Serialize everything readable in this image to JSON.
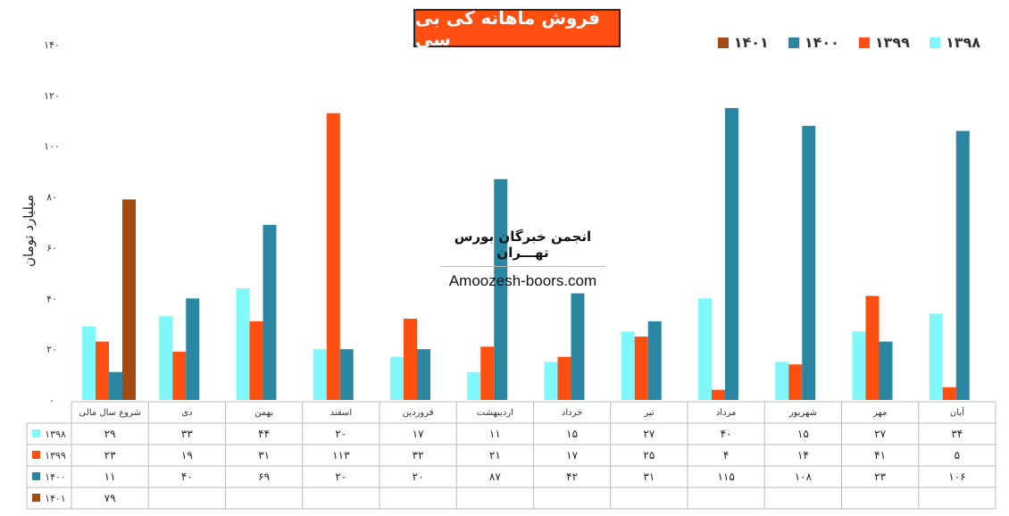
{
  "chart_data": {
    "type": "bar",
    "title": "فروش ماهانه کی بی سی",
    "ylabel": "میلیارد تومان",
    "ylim": [
      0,
      140
    ],
    "yticks": [
      "۰",
      "۲۰",
      "۴۰",
      "۶۰",
      "۸۰",
      "۱۰۰",
      "۱۲۰",
      "۱۴۰"
    ],
    "categories": [
      "شروع سال مالی",
      "دی",
      "بهمن",
      "اسفند",
      "فروردین",
      "اردیبهشت",
      "خرداد",
      "تیر",
      "مرداد",
      "شهریور",
      "مهر",
      "آبان"
    ],
    "series": [
      {
        "name": "۱۳۹۸",
        "color": "#7ff7fb",
        "values": [
          29,
          33,
          44,
          20,
          17,
          11,
          15,
          27,
          40,
          15,
          27,
          34
        ],
        "labels": [
          "۲۹",
          "۳۳",
          "۴۴",
          "۲۰",
          "۱۷",
          "۱۱",
          "۱۵",
          "۲۷",
          "۴۰",
          "۱۵",
          "۲۷",
          "۳۴"
        ]
      },
      {
        "name": "۱۳۹۹",
        "color": "#fe4f12",
        "values": [
          23,
          19,
          31,
          113,
          32,
          21,
          17,
          25,
          4,
          14,
          41,
          5
        ],
        "labels": [
          "۲۳",
          "۱۹",
          "۳۱",
          "۱۱۳",
          "۳۲",
          "۲۱",
          "۱۷",
          "۲۵",
          "۴",
          "۱۴",
          "۴۱",
          "۵"
        ]
      },
      {
        "name": "۱۴۰۰",
        "color": "#2a86a1",
        "values": [
          11,
          40,
          69,
          20,
          20,
          87,
          42,
          31,
          115,
          108,
          23,
          106
        ],
        "labels": [
          "۱۱",
          "۴۰",
          "۶۹",
          "۲۰",
          "۲۰",
          "۸۷",
          "۴۲",
          "۳۱",
          "۱۱۵",
          "۱۰۸",
          "۲۳",
          "۱۰۶"
        ]
      },
      {
        "name": "۱۴۰۱",
        "color": "#a44a12",
        "values": [
          79,
          null,
          null,
          null,
          null,
          null,
          null,
          null,
          null,
          null,
          null,
          null
        ],
        "labels": [
          "۷۹",
          "",
          "",
          "",
          "",
          "",
          "",
          "",
          "",
          "",
          "",
          ""
        ]
      }
    ],
    "grid": false,
    "legend": "top-right",
    "data_table": true
  },
  "watermark": {
    "title": "انجمن خبرگان بورس تهـــران",
    "url": "Amoozesh-boors.com"
  }
}
